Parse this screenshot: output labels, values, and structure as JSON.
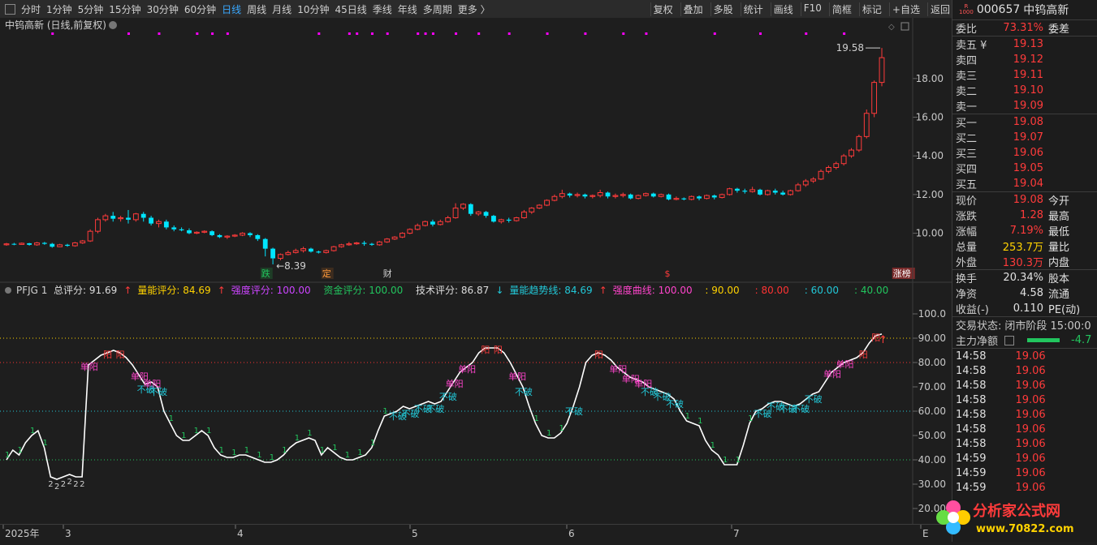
{
  "toolbar": {
    "periods": [
      "分时",
      "1分钟",
      "5分钟",
      "15分钟",
      "30分钟",
      "60分钟",
      "日线",
      "周线",
      "月线",
      "10分钟",
      "45日线",
      "季线",
      "年线",
      "多周期",
      "更多 〉"
    ],
    "active": "日线",
    "actions": [
      "复权",
      "叠加",
      "多股",
      "统计",
      "画线",
      "F10",
      "简框",
      "标记",
      "+自选",
      "返回"
    ]
  },
  "main_chart": {
    "title": "中钨高新 (日线,前复权)",
    "price_ticks": [
      "18.00",
      "16.00",
      "14.00",
      "12.00",
      "10.00"
    ],
    "high_label": "19.58",
    "low_label": "8.39",
    "event_labels": [
      "跌",
      "定",
      "财",
      "$",
      "涨榜"
    ],
    "candles": [
      [
        9.4,
        9.45,
        9.35,
        9.5
      ],
      [
        9.45,
        9.42,
        9.38,
        9.5
      ],
      [
        9.42,
        9.48,
        9.4,
        9.52
      ],
      [
        9.48,
        9.4,
        9.36,
        9.5
      ],
      [
        9.4,
        9.5,
        9.35,
        9.55
      ],
      [
        9.5,
        9.45,
        9.4,
        9.55
      ],
      [
        9.45,
        9.3,
        9.25,
        9.5
      ],
      [
        9.3,
        9.4,
        9.28,
        9.45
      ],
      [
        9.4,
        9.35,
        9.3,
        9.45
      ],
      [
        9.35,
        9.5,
        9.3,
        9.55
      ],
      [
        9.5,
        9.6,
        9.45,
        9.65
      ],
      [
        9.6,
        10.1,
        9.55,
        10.2
      ],
      [
        10.1,
        10.7,
        10.0,
        10.8
      ],
      [
        10.7,
        10.9,
        10.6,
        11.0
      ],
      [
        10.9,
        10.75,
        10.6,
        11.1
      ],
      [
        10.75,
        10.8,
        10.6,
        10.9
      ],
      [
        10.8,
        10.7,
        10.5,
        11.2
      ],
      [
        10.7,
        11.0,
        10.6,
        11.05
      ],
      [
        11.0,
        10.8,
        10.6,
        11.1
      ],
      [
        10.8,
        10.5,
        10.4,
        10.9
      ],
      [
        10.5,
        10.6,
        10.3,
        10.7
      ],
      [
        10.6,
        10.3,
        10.2,
        10.7
      ],
      [
        10.3,
        10.2,
        10.1,
        10.4
      ],
      [
        10.2,
        10.15,
        10.1,
        10.3
      ],
      [
        10.15,
        10.0,
        9.95,
        10.25
      ],
      [
        10.0,
        10.05,
        9.95,
        10.1
      ],
      [
        10.05,
        10.1,
        10.0,
        10.15
      ],
      [
        10.1,
        9.9,
        9.85,
        10.15
      ],
      [
        9.9,
        9.8,
        9.75,
        9.95
      ],
      [
        9.8,
        9.85,
        9.7,
        9.9
      ],
      [
        9.85,
        9.9,
        9.8,
        9.95
      ],
      [
        9.9,
        10.0,
        9.85,
        10.05
      ],
      [
        10.0,
        9.9,
        9.8,
        10.05
      ],
      [
        9.9,
        9.7,
        9.6,
        9.95
      ],
      [
        9.7,
        9.2,
        8.8,
        9.75
      ],
      [
        9.2,
        8.7,
        8.39,
        9.25
      ],
      [
        8.7,
        8.9,
        8.6,
        8.95
      ],
      [
        8.9,
        9.0,
        8.85,
        9.1
      ],
      [
        9.0,
        9.1,
        8.95,
        9.2
      ],
      [
        9.1,
        9.2,
        9.0,
        9.3
      ],
      [
        9.2,
        9.05,
        9.0,
        9.25
      ],
      [
        9.05,
        9.0,
        8.95,
        9.1
      ],
      [
        9.0,
        9.1,
        8.95,
        9.15
      ],
      [
        9.1,
        9.3,
        9.05,
        9.35
      ],
      [
        9.3,
        9.4,
        9.25,
        9.45
      ],
      [
        9.4,
        9.45,
        9.35,
        9.55
      ],
      [
        9.45,
        9.5,
        9.4,
        9.55
      ],
      [
        9.5,
        9.45,
        9.35,
        9.6
      ],
      [
        9.45,
        9.4,
        9.35,
        9.5
      ],
      [
        9.4,
        9.55,
        9.35,
        9.6
      ],
      [
        9.55,
        9.7,
        9.5,
        9.75
      ],
      [
        9.7,
        9.8,
        9.65,
        9.85
      ],
      [
        9.8,
        10.0,
        9.75,
        10.05
      ],
      [
        10.0,
        10.2,
        9.95,
        10.25
      ],
      [
        10.2,
        10.4,
        10.15,
        10.5
      ],
      [
        10.4,
        10.6,
        10.35,
        10.65
      ],
      [
        10.6,
        10.45,
        10.35,
        10.7
      ],
      [
        10.45,
        10.6,
        10.4,
        10.7
      ],
      [
        10.6,
        10.8,
        10.55,
        10.9
      ],
      [
        10.8,
        11.3,
        10.75,
        11.55
      ],
      [
        11.3,
        11.5,
        11.2,
        11.55
      ],
      [
        11.5,
        11.0,
        10.9,
        11.55
      ],
      [
        11.0,
        11.1,
        10.9,
        11.15
      ],
      [
        11.1,
        10.9,
        10.8,
        11.15
      ],
      [
        10.9,
        10.6,
        10.55,
        10.95
      ],
      [
        10.6,
        10.7,
        10.5,
        10.75
      ],
      [
        10.7,
        10.65,
        10.55,
        10.8
      ],
      [
        10.65,
        10.8,
        10.6,
        10.85
      ],
      [
        10.8,
        11.1,
        10.75,
        11.2
      ],
      [
        11.1,
        11.3,
        11.0,
        11.35
      ],
      [
        11.3,
        11.45,
        11.25,
        11.5
      ],
      [
        11.45,
        11.7,
        11.4,
        11.75
      ],
      [
        11.7,
        11.9,
        11.65,
        12.0
      ],
      [
        11.9,
        12.05,
        11.8,
        12.25
      ],
      [
        12.05,
        11.95,
        11.85,
        12.1
      ],
      [
        11.95,
        12.0,
        11.85,
        12.1
      ],
      [
        12.0,
        11.9,
        11.8,
        12.05
      ],
      [
        11.9,
        11.95,
        11.8,
        12.0
      ],
      [
        11.95,
        12.1,
        11.85,
        12.25
      ],
      [
        12.1,
        11.9,
        11.8,
        12.15
      ],
      [
        11.9,
        11.95,
        11.8,
        12.05
      ],
      [
        11.95,
        12.0,
        11.85,
        12.1
      ],
      [
        12.0,
        11.8,
        11.75,
        12.05
      ],
      [
        11.8,
        11.95,
        11.75,
        12.0
      ],
      [
        11.95,
        12.05,
        11.9,
        12.1
      ],
      [
        12.05,
        11.9,
        11.85,
        12.1
      ],
      [
        11.9,
        12.0,
        11.85,
        12.05
      ],
      [
        12.0,
        11.75,
        11.7,
        12.05
      ],
      [
        11.75,
        11.8,
        11.7,
        11.9
      ],
      [
        11.8,
        11.75,
        11.7,
        11.85
      ],
      [
        11.75,
        11.9,
        11.7,
        11.95
      ],
      [
        11.9,
        11.8,
        11.7,
        11.95
      ],
      [
        11.8,
        11.95,
        11.75,
        12.0
      ],
      [
        11.95,
        11.85,
        11.75,
        12.0
      ],
      [
        11.85,
        12.0,
        11.8,
        12.05
      ],
      [
        12.0,
        12.3,
        11.95,
        12.35
      ],
      [
        12.3,
        12.2,
        12.1,
        12.35
      ],
      [
        12.2,
        12.15,
        12.05,
        12.3
      ],
      [
        12.15,
        12.25,
        12.1,
        12.4
      ],
      [
        12.25,
        12.0,
        11.95,
        12.3
      ],
      [
        12.0,
        12.2,
        11.95,
        12.25
      ],
      [
        12.2,
        12.1,
        12.0,
        12.3
      ],
      [
        12.1,
        12.0,
        11.95,
        12.2
      ],
      [
        12.0,
        12.2,
        11.95,
        12.25
      ],
      [
        12.2,
        12.5,
        12.15,
        12.6
      ],
      [
        12.5,
        12.7,
        12.4,
        12.8
      ],
      [
        12.7,
        12.8,
        12.6,
        12.9
      ],
      [
        12.8,
        13.2,
        12.75,
        13.3
      ],
      [
        13.2,
        13.4,
        13.1,
        13.5
      ],
      [
        13.4,
        13.6,
        13.3,
        13.7
      ],
      [
        13.6,
        14.0,
        13.5,
        14.1
      ],
      [
        14.0,
        14.3,
        13.9,
        14.4
      ],
      [
        14.3,
        15.0,
        14.2,
        15.1
      ],
      [
        15.0,
        16.2,
        14.9,
        16.4
      ],
      [
        16.2,
        17.8,
        16.0,
        17.9
      ],
      [
        17.8,
        19.08,
        17.6,
        19.58
      ]
    ]
  },
  "indicator": {
    "name": "PFJG 1",
    "header_items": [
      {
        "label": "总评分: 91.69",
        "arrow": "↑",
        "color": "#dddddd"
      },
      {
        "label": "量能评分: 84.69",
        "arrow": "↑",
        "color": "#ffd200"
      },
      {
        "label": "强度评分: 100.00",
        "arrow": "",
        "color": "#cc44ff"
      },
      {
        "label": "资金评分: 100.00",
        "arrow": "",
        "color": "#22c55e"
      },
      {
        "label": "技术评分: 86.87",
        "arrow": "↓",
        "color": "#dddddd"
      },
      {
        "label": "量能趋势线: 84.69",
        "arrow": "↑",
        "color": "#22c8d8"
      },
      {
        "label": "强度曲线: 100.00",
        "arrow": "",
        "color": "#ff44cc"
      },
      {
        "label": ": 90.00",
        "arrow": "",
        "color": "#ffd200"
      },
      {
        "label": ": 80.00",
        "arrow": "",
        "color": "#ff3333"
      },
      {
        "label": ": 60.00",
        "arrow": "",
        "color": "#22c8d8"
      },
      {
        "label": ": 40.00",
        "arrow": "",
        "color": "#22c55e"
      }
    ],
    "score_ticks": [
      "100.0",
      "90.00",
      "80.00",
      "70.00",
      "60.00",
      "50.00",
      "40.00",
      "30.00",
      "20.00"
    ],
    "levels": [
      90,
      80,
      60,
      40
    ],
    "series": [
      40,
      44,
      42,
      47,
      50,
      52,
      45,
      33,
      32,
      33,
      34,
      33,
      33,
      79,
      81,
      83,
      84,
      85,
      84,
      82,
      79,
      75,
      71,
      72,
      70,
      60,
      55,
      50,
      48,
      48,
      50,
      52,
      50,
      45,
      42,
      41,
      41,
      42,
      42,
      41,
      40,
      39,
      39,
      40,
      42,
      45,
      47,
      48,
      49,
      48,
      42,
      45,
      43,
      41,
      40,
      40,
      41,
      42,
      45,
      52,
      58,
      59,
      60,
      62,
      61,
      62,
      63,
      64,
      63,
      64,
      68,
      72,
      76,
      78,
      80,
      84,
      86,
      86,
      86,
      84,
      80,
      75,
      70,
      62,
      55,
      50,
      49,
      49,
      51,
      55,
      62,
      70,
      80,
      83,
      84,
      83,
      81,
      78,
      76,
      74,
      73,
      72,
      70,
      69,
      68,
      67,
      65,
      60,
      56,
      55,
      54,
      48,
      44,
      42,
      38,
      38,
      38,
      46,
      55,
      60,
      61,
      63,
      64,
      64,
      63,
      62,
      63,
      65,
      67,
      68,
      72,
      76,
      78,
      80,
      81,
      82,
      84,
      88,
      91,
      91.69
    ],
    "signal_labels": [
      "阳",
      "单阳",
      "不破",
      "1",
      "2"
    ]
  },
  "x_axis": {
    "labels": [
      "2025年",
      "3",
      "4",
      "5",
      "6",
      "7",
      "E"
    ]
  },
  "quote": {
    "code": "000657",
    "name": "中钨高新",
    "badge_top": "R",
    "badge_bottom": "1000",
    "webi_label": "委比",
    "webi_value": "73.31%",
    "wecha_label": "委差",
    "asks": [
      {
        "label": "卖五 ¥",
        "price": "19.13"
      },
      {
        "label": "卖四",
        "price": "19.12"
      },
      {
        "label": "卖三",
        "price": "19.11"
      },
      {
        "label": "卖二",
        "price": "19.10"
      },
      {
        "label": "卖一",
        "price": "19.09"
      }
    ],
    "bids": [
      {
        "label": "买一",
        "price": "19.08"
      },
      {
        "label": "买二",
        "price": "19.07"
      },
      {
        "label": "买三",
        "price": "19.06"
      },
      {
        "label": "买四",
        "price": "19.05"
      },
      {
        "label": "买五",
        "price": "19.04"
      }
    ],
    "stats": [
      {
        "l": "现价",
        "v": "19.08",
        "r": "今开",
        "c": "red"
      },
      {
        "l": "涨跌",
        "v": "1.28",
        "r": "最高",
        "c": "red"
      },
      {
        "l": "涨幅",
        "v": "7.19%",
        "r": "最低",
        "c": "red"
      },
      {
        "l": "总量",
        "v": "253.7万",
        "r": "量比",
        "c": "yel"
      },
      {
        "l": "外盘",
        "v": "130.3万",
        "r": "内盘",
        "c": "red"
      }
    ],
    "stats2": [
      {
        "l": "换手",
        "v": "20.34%",
        "r": "股本"
      },
      {
        "l": "净资",
        "v": "4.58",
        "r": "流通"
      },
      {
        "l": "收益(-)",
        "v": "0.110",
        "r": "PE(动)"
      }
    ],
    "status_label": "交易状态:",
    "status_value": "闭市阶段 15:00:0",
    "net_label": "主力净额",
    "net_value": "-4.7",
    "ticks": [
      {
        "t": "14:58",
        "p": "19.06"
      },
      {
        "t": "14:58",
        "p": "19.06"
      },
      {
        "t": "14:58",
        "p": "19.06"
      },
      {
        "t": "14:58",
        "p": "19.06"
      },
      {
        "t": "14:58",
        "p": "19.06"
      },
      {
        "t": "14:58",
        "p": "19.06"
      },
      {
        "t": "14:58",
        "p": "19.06"
      },
      {
        "t": "14:59",
        "p": "19.06"
      },
      {
        "t": "14:59",
        "p": "19.06"
      },
      {
        "t": "14:59",
        "p": "19.06"
      }
    ]
  },
  "logo": {
    "text": "分析家公式网",
    "url_text": "www.70822.com"
  },
  "colors": {
    "up": "#ff3b3b",
    "down": "#00e5ff",
    "bg": "#1e1e1e",
    "accent": "#39a8ff"
  }
}
